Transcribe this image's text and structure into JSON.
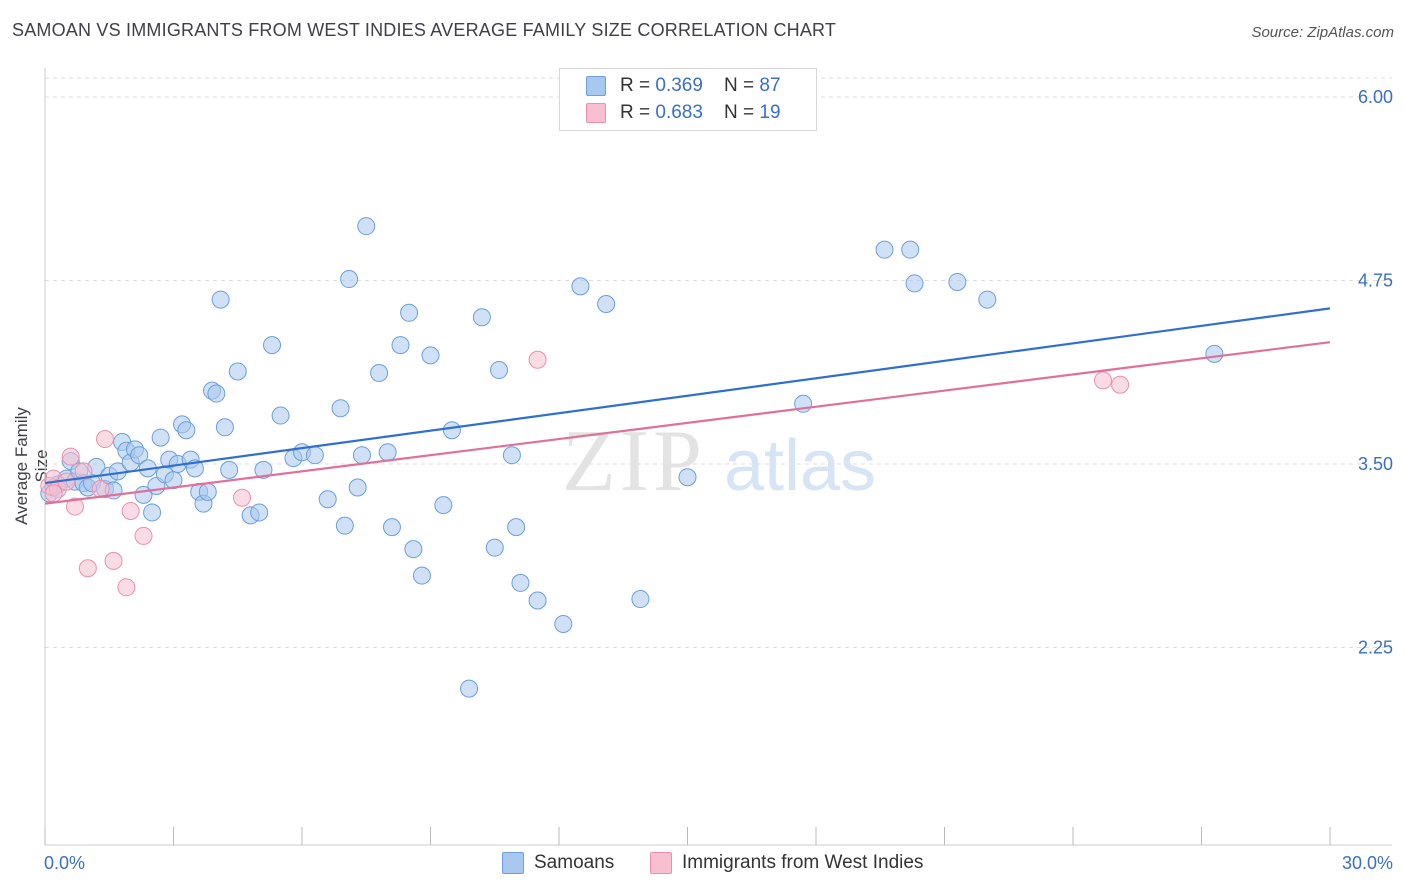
{
  "header": {
    "title": "SAMOAN VS IMMIGRANTS FROM WEST INDIES AVERAGE FAMILY SIZE CORRELATION CHART",
    "source": "Source: ZipAtlas.com"
  },
  "watermark": {
    "zip": "ZIP",
    "atlas": "atlas"
  },
  "legend": {
    "samoans": {
      "r_label": "R = ",
      "r_value": "0.369",
      "n_label": "N = ",
      "n_value": "87"
    },
    "west_indies": {
      "r_label": "R = ",
      "r_value": "0.683",
      "n_label": "N = ",
      "n_value": "19"
    }
  },
  "bottom_legend": {
    "samoans": "Samoans",
    "west_indies": "Immigrants from West Indies"
  },
  "colors": {
    "samoans_fill": "#a9c8f0",
    "samoans_stroke": "#6a9fe0",
    "samoans_line": "#2f6fcf",
    "west_indies_fill": "#f7bfd0",
    "west_indies_stroke": "#ec8fac",
    "west_indies_line": "#e0709a",
    "tick_text": "#3a6fc4",
    "grid": "#dddddd"
  },
  "chart_data": {
    "type": "scatter",
    "title": "SAMOAN VS IMMIGRANTS FROM WEST INDIES AVERAGE FAMILY SIZE CORRELATION CHART",
    "xlabel": "",
    "ylabel": "Average Family Size",
    "xlim": [
      0,
      30
    ],
    "ylim": [
      1.2,
      6.15
    ],
    "x_tick_labels": [
      "0.0%",
      "30.0%"
    ],
    "y_ticks": [
      2.25,
      3.5,
      4.75,
      6.0
    ],
    "y_tick_labels": [
      "2.25",
      "3.50",
      "4.75",
      "6.00"
    ],
    "grid": true,
    "legend_position": "top-center",
    "series": [
      {
        "name": "Samoans",
        "r": 0.369,
        "n": 87,
        "trend": [
          [
            0,
            3.37
          ],
          [
            30,
            4.56
          ]
        ],
        "points": [
          [
            0.1,
            3.3
          ],
          [
            0.3,
            3.36
          ],
          [
            0.5,
            3.4
          ],
          [
            0.6,
            3.52
          ],
          [
            0.7,
            3.38
          ],
          [
            0.8,
            3.45
          ],
          [
            0.9,
            3.37
          ],
          [
            1.0,
            3.34
          ],
          [
            1.1,
            3.37
          ],
          [
            1.2,
            3.48
          ],
          [
            1.4,
            3.33
          ],
          [
            1.5,
            3.42
          ],
          [
            1.6,
            3.32
          ],
          [
            1.7,
            3.45
          ],
          [
            1.8,
            3.65
          ],
          [
            1.9,
            3.59
          ],
          [
            2.0,
            3.51
          ],
          [
            2.1,
            3.6
          ],
          [
            2.2,
            3.56
          ],
          [
            2.3,
            3.29
          ],
          [
            2.4,
            3.47
          ],
          [
            2.5,
            3.17
          ],
          [
            2.6,
            3.35
          ],
          [
            2.7,
            3.68
          ],
          [
            2.8,
            3.43
          ],
          [
            2.9,
            3.53
          ],
          [
            3.0,
            3.39
          ],
          [
            3.1,
            3.5
          ],
          [
            3.2,
            3.77
          ],
          [
            3.3,
            3.73
          ],
          [
            3.4,
            3.53
          ],
          [
            3.5,
            3.47
          ],
          [
            3.6,
            3.31
          ],
          [
            3.7,
            3.23
          ],
          [
            3.8,
            3.31
          ],
          [
            3.9,
            4.0
          ],
          [
            4.0,
            3.98
          ],
          [
            4.1,
            4.62
          ],
          [
            4.2,
            3.75
          ],
          [
            4.3,
            3.46
          ],
          [
            4.5,
            4.13
          ],
          [
            4.8,
            3.15
          ],
          [
            5.0,
            3.17
          ],
          [
            5.1,
            3.46
          ],
          [
            5.3,
            4.31
          ],
          [
            5.5,
            3.83
          ],
          [
            5.8,
            3.54
          ],
          [
            6.0,
            3.58
          ],
          [
            6.3,
            3.56
          ],
          [
            6.6,
            3.26
          ],
          [
            6.9,
            3.88
          ],
          [
            7.0,
            3.08
          ],
          [
            7.1,
            4.76
          ],
          [
            7.3,
            3.34
          ],
          [
            7.4,
            3.56
          ],
          [
            7.5,
            5.12
          ],
          [
            7.8,
            4.12
          ],
          [
            8.0,
            3.58
          ],
          [
            8.1,
            3.07
          ],
          [
            8.3,
            4.31
          ],
          [
            8.5,
            4.53
          ],
          [
            8.6,
            2.92
          ],
          [
            8.8,
            2.74
          ],
          [
            9.0,
            4.24
          ],
          [
            9.3,
            3.22
          ],
          [
            9.5,
            3.73
          ],
          [
            9.9,
            1.97
          ],
          [
            10.2,
            4.5
          ],
          [
            10.5,
            2.93
          ],
          [
            10.6,
            4.14
          ],
          [
            10.9,
            3.56
          ],
          [
            11.0,
            3.07
          ],
          [
            11.1,
            2.69
          ],
          [
            11.5,
            2.57
          ],
          [
            12.1,
            2.41
          ],
          [
            12.5,
            4.71
          ],
          [
            13.1,
            4.59
          ],
          [
            13.9,
            2.58
          ],
          [
            15.0,
            3.41
          ],
          [
            17.7,
            3.91
          ],
          [
            19.6,
            4.96
          ],
          [
            20.2,
            4.96
          ],
          [
            20.3,
            4.73
          ],
          [
            21.3,
            4.74
          ],
          [
            22.0,
            4.62
          ],
          [
            27.3,
            4.25
          ],
          [
            0.2,
            3.34
          ]
        ]
      },
      {
        "name": "Immigrants from West Indies",
        "r": 0.683,
        "n": 19,
        "trend": [
          [
            0,
            3.23
          ],
          [
            30,
            4.33
          ]
        ],
        "points": [
          [
            0.1,
            3.35
          ],
          [
            0.2,
            3.4
          ],
          [
            0.3,
            3.33
          ],
          [
            0.5,
            3.38
          ],
          [
            0.6,
            3.55
          ],
          [
            0.7,
            3.21
          ],
          [
            0.9,
            3.45
          ],
          [
            1.0,
            2.79
          ],
          [
            1.3,
            3.33
          ],
          [
            1.4,
            3.67
          ],
          [
            1.6,
            2.84
          ],
          [
            1.9,
            2.66
          ],
          [
            2.0,
            3.18
          ],
          [
            2.3,
            3.01
          ],
          [
            4.6,
            3.27
          ],
          [
            11.5,
            4.21
          ],
          [
            24.7,
            4.07
          ],
          [
            25.1,
            4.04
          ],
          [
            0.2,
            3.3
          ]
        ]
      }
    ]
  }
}
